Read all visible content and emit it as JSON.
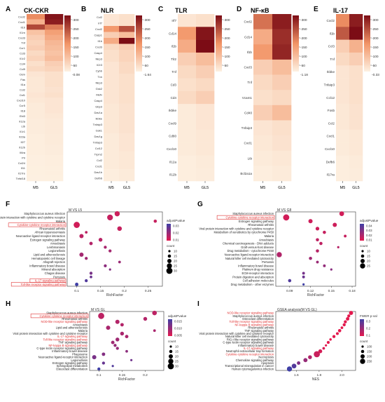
{
  "figure": {
    "heatmap_legend_ticks": [
      "300",
      "250",
      "200",
      "150",
      "100",
      "50"
    ],
    "colors": {
      "heat_low": "#fdf1e2",
      "heat_mid": "#f29466",
      "heat_high": "#7c0c15",
      "dot_low_p": "#e3194e",
      "dot_high_p": "#3f3fa6",
      "highlight_box": "#e03030",
      "highlight_text": "#e03030"
    }
  },
  "chart_data": [
    {
      "type": "heatmap",
      "panel": "A",
      "title": "CK-CKR",
      "min_label": "-0.08",
      "columns": [
        "M5",
        "GL5"
      ],
      "rows": [
        "Cxcl2",
        "Cxcl1",
        "Il1b",
        "Il1rn",
        "Cxcl3",
        "Tnf",
        "Ccr1",
        "Ccl3",
        "Il1r2",
        "Ccl4",
        "Ccl9",
        "Osm",
        "Fas",
        "Il1a",
        "Ccl2",
        "Csf1",
        "Cxcl10",
        "Ccr5",
        "Il18",
        "Ebi3",
        "Il12a",
        "Ltb",
        "Il1r1",
        "Il23a",
        "Il27",
        "Il12b",
        "Il6ra",
        "Prl",
        "Ccl24",
        "Il11",
        "Il17re",
        "Tnfsf18"
      ],
      "values": [
        [
          170,
          310
        ],
        [
          110,
          300
        ],
        [
          250,
          190
        ],
        [
          80,
          140
        ],
        [
          60,
          120
        ],
        [
          50,
          100
        ],
        [
          60,
          90
        ],
        [
          40,
          80
        ],
        [
          50,
          90
        ],
        [
          30,
          60
        ],
        [
          40,
          50
        ],
        [
          20,
          30
        ],
        [
          15,
          30
        ],
        [
          15,
          30
        ],
        [
          15,
          25
        ],
        [
          20,
          30
        ],
        [
          15,
          20
        ],
        [
          10,
          20
        ],
        [
          10,
          20
        ],
        [
          10,
          15
        ],
        [
          8,
          12
        ],
        [
          8,
          12
        ],
        [
          8,
          12
        ],
        [
          5,
          10
        ],
        [
          5,
          10
        ],
        [
          5,
          8
        ],
        [
          5,
          8
        ],
        [
          3,
          5
        ],
        [
          3,
          5
        ],
        [
          2,
          4
        ],
        [
          2,
          4
        ],
        [
          1,
          2
        ]
      ],
      "range": [
        0,
        320
      ]
    },
    {
      "type": "heatmap",
      "panel": "B",
      "title": "NLR",
      "min_label": "-1.64",
      "columns": [
        "M5",
        "GL5"
      ],
      "rows": [
        "Ccl2",
        "Irf7",
        "Cxcl2",
        "Casp1",
        "Il1b",
        "Cxcl3",
        "Casp4",
        "Nlrp3",
        "Il2r3",
        "Cybb",
        "Txn",
        "Nlrp3",
        "Gsk2",
        "Mefv",
        "Casp4",
        "Gbp3",
        "Dav1a",
        "Ikbke",
        "Tnfaip3",
        "Gsk1",
        "Dav1g",
        "Tnfaip3",
        "Ccl12",
        "Trpm2",
        "Ccl2",
        "Cxcl1",
        "Dav1b",
        "Defb6"
      ],
      "values": [
        [
          20,
          30
        ],
        [
          20,
          30
        ],
        [
          150,
          240
        ],
        [
          60,
          90
        ],
        [
          120,
          320
        ],
        [
          40,
          60
        ],
        [
          30,
          50
        ],
        [
          30,
          50
        ],
        [
          20,
          40
        ],
        [
          20,
          40
        ],
        [
          20,
          30
        ],
        [
          20,
          30
        ],
        [
          20,
          30
        ],
        [
          20,
          30
        ],
        [
          20,
          30
        ],
        [
          15,
          25
        ],
        [
          15,
          25
        ],
        [
          15,
          25
        ],
        [
          15,
          25
        ],
        [
          15,
          25
        ],
        [
          10,
          20
        ],
        [
          10,
          20
        ],
        [
          10,
          20
        ],
        [
          10,
          15
        ],
        [
          10,
          15
        ],
        [
          10,
          15
        ],
        [
          5,
          10
        ],
        [
          5,
          10
        ]
      ],
      "range": [
        0,
        320
      ]
    },
    {
      "type": "heatmap",
      "panel": "C",
      "title": "TLR",
      "min_label": "",
      "columns": [
        "M5",
        "GL5"
      ],
      "rows": [
        "Irf7",
        "Cd14",
        "Il1b",
        "Tlr2",
        "Tnf",
        "Cd3",
        "Cd4",
        "Ikbke",
        "Cxcl9",
        "Cd80",
        "Cxcl10",
        "Il12a",
        "Il12b"
      ],
      "values": [
        [
          20,
          30
        ],
        [
          150,
          310
        ],
        [
          120,
          330
        ],
        [
          60,
          90
        ],
        [
          40,
          60
        ],
        [
          30,
          40
        ],
        [
          40,
          60
        ],
        [
          10,
          20
        ],
        [
          10,
          20
        ],
        [
          10,
          15
        ],
        [
          10,
          15
        ],
        [
          5,
          10
        ],
        [
          5,
          8
        ]
      ],
      "range": [
        0,
        320
      ]
    },
    {
      "type": "heatmap",
      "panel": "D",
      "title": "NF-κB",
      "min_label": "-1.18",
      "columns": [
        "M5",
        "GL5"
      ],
      "rows": [
        "Cxcl2",
        "Cd14",
        "Il1b",
        "Cxcl3",
        "Tnf",
        "Vcam1",
        "Cd40",
        "Tnfaip3",
        "Cxcl1",
        "Ltb",
        "Bcl2a1a"
      ],
      "values": [
        [
          200,
          300
        ],
        [
          120,
          280
        ],
        [
          150,
          290
        ],
        [
          60,
          90
        ],
        [
          40,
          60
        ],
        [
          30,
          40
        ],
        [
          60,
          90
        ],
        [
          20,
          30
        ],
        [
          15,
          25
        ],
        [
          10,
          15
        ],
        [
          5,
          10
        ]
      ],
      "range": [
        0,
        320
      ]
    },
    {
      "type": "heatmap",
      "panel": "E",
      "title": "IL-17",
      "min_label": "-0.33",
      "columns": [
        "M5",
        "GL5"
      ],
      "rows": [
        "Cxcl2",
        "Il1b",
        "Ccl3",
        "Tnf",
        "Ikbke",
        "Tnfaip3",
        "Ccl12",
        "Fosb",
        "Ccl2",
        "Cxcl1",
        "Cxcl10",
        "Defb6",
        "Il17ra"
      ],
      "values": [
        [
          170,
          300
        ],
        [
          230,
          320
        ],
        [
          60,
          110
        ],
        [
          40,
          60
        ],
        [
          20,
          30
        ],
        [
          20,
          30
        ],
        [
          20,
          30
        ],
        [
          15,
          25
        ],
        [
          15,
          25
        ],
        [
          10,
          15
        ],
        [
          10,
          15
        ],
        [
          5,
          10
        ],
        [
          5,
          8
        ]
      ],
      "range": [
        0,
        320
      ]
    },
    {
      "type": "scatter",
      "panel": "F",
      "title": "M VS L5",
      "xlabel": "RichFactor",
      "xticks": [
        0.1,
        0.15,
        0.2,
        0.25
      ],
      "xlim": [
        0.08,
        0.28
      ],
      "legend_color_title": "adjustPvalue",
      "legend_color_ticks": [
        "0.03",
        "0.02",
        "0.01"
      ],
      "legend_size_title": "count",
      "legend_size_ticks": [
        10,
        15,
        20,
        25,
        30
      ],
      "terms": [
        "Staphylococcus aureus infection",
        "Viral protein interaction with cytokine and cytokine receptor",
        "Malaria",
        "Cytokine-cytokine receptor interaction",
        "Rheumatoid arthritis",
        "African trypanosomiasis",
        "Neuroactive ligand-receptor interaction",
        "Estrogen signaling pathway",
        "Amoebiasis",
        "Leishmaniasis",
        "Legionellosis",
        "Lipid and atherosclerosis",
        "Hematopoietic cell lineage",
        "Allograft rejection",
        "Inflammatory bowel disease",
        "Mineral absorption",
        "Chagas disease",
        "Pertussis",
        "IL-17 signaling pathway",
        "Toll-like receptor signaling pathway"
      ],
      "highlighted": [
        3,
        18,
        19
      ],
      "x": [
        0.185,
        0.17,
        0.265,
        0.1,
        0.19,
        0.12,
        0.11,
        0.15,
        0.13,
        0.16,
        0.17,
        0.11,
        0.12,
        0.19,
        0.16,
        0.17,
        0.13,
        0.13,
        0.12,
        0.1
      ],
      "count": [
        25,
        28,
        15,
        30,
        22,
        12,
        20,
        18,
        16,
        14,
        14,
        20,
        14,
        12,
        14,
        10,
        14,
        12,
        14,
        16
      ],
      "p": [
        0.005,
        0.006,
        0.006,
        0.004,
        0.006,
        0.008,
        0.008,
        0.009,
        0.01,
        0.012,
        0.013,
        0.013,
        0.014,
        0.015,
        0.018,
        0.02,
        0.022,
        0.025,
        0.03,
        0.034
      ]
    },
    {
      "type": "scatter",
      "panel": "G",
      "title": "M VS G8",
      "xlabel": "RichFactor",
      "xticks": [
        0.09,
        0.12,
        0.15,
        0.18
      ],
      "xlim": [
        0.07,
        0.185
      ],
      "legend_color_title": "adjustPvalue",
      "legend_color_ticks": [
        "0.04",
        "0.03",
        "0.02",
        "0.01"
      ],
      "legend_size_title": "count",
      "legend_size_ticks": [
        10,
        15,
        20,
        25
      ],
      "terms": [
        "Staphylococcus aureus infection",
        "Cytokine-cytokine receptor interaction",
        "Estrogen signaling pathway",
        "Rheumatoid arthritis",
        "Viral protein interaction with cytokine and cytokine receptor",
        "Metabolism of xenobiotics by cytochrome P450",
        "Malaria",
        "Amoebiasis",
        "Chemical carcinogenesis - DNA adducts",
        "Graft-versus-host disease",
        "Drug metabolism - cytochrome P450",
        "Neuroactive ligand-receptor interaction",
        "Natural killer cell mediated cytotoxicity",
        "Pertussis",
        "Inflammatory bowel disease",
        "Platinum drug resistance",
        "ECM-receptor interaction",
        "Protein digestion and absorption",
        "Cell adhesion molecules",
        "Drug metabolism - other enzymes"
      ],
      "highlighted": [
        1
      ],
      "x": [
        0.165,
        0.085,
        0.12,
        0.155,
        0.13,
        0.14,
        0.17,
        0.13,
        0.135,
        0.16,
        0.13,
        0.075,
        0.12,
        0.13,
        0.14,
        0.15,
        0.11,
        0.11,
        0.09,
        0.11
      ],
      "count": [
        20,
        26,
        18,
        18,
        16,
        14,
        12,
        14,
        14,
        10,
        14,
        22,
        14,
        12,
        12,
        10,
        12,
        12,
        14,
        10
      ],
      "p": [
        0.005,
        0.005,
        0.006,
        0.006,
        0.006,
        0.008,
        0.008,
        0.01,
        0.01,
        0.012,
        0.012,
        0.014,
        0.018,
        0.02,
        0.022,
        0.025,
        0.03,
        0.033,
        0.04,
        0.045
      ]
    },
    {
      "type": "scatter",
      "panel": "H",
      "title": "M VS GL",
      "xlabel": "RichFactor",
      "xticks": [
        0.1,
        0.15,
        0.2
      ],
      "xlim": [
        0.08,
        0.24
      ],
      "legend_color_title": "adjustPvalue",
      "legend_color_ticks": [
        "0.015",
        "0.010",
        "0.005"
      ],
      "legend_size_title": "count",
      "legend_size_ticks": [
        10,
        15,
        20,
        25,
        30
      ],
      "terms": [
        "Staphylococcus aureus infection",
        "Cytokine-cytokine receptor interaction",
        "Rheumatoid arthritis",
        "NOD-like receptor signaling pathway",
        "Amoebiasis",
        "Lipid and atherosclerosis",
        "Malaria",
        "Viral protein interaction with cytokine and cytokine receptor",
        "IL-17 signaling pathway",
        "Toll-like receptor signaling pathway",
        "TNF signaling pathway",
        "NF-kappa B signaling pathway",
        "C-type lectin receptor signaling pathway",
        "Inflammatory bowel disease",
        "Phagosome",
        "Neuroactive ligand-receptor interaction",
        "Legionellosis",
        "Estrogen signaling pathway",
        "Sphingolipid metabolism",
        "Osteoclast differentiation"
      ],
      "highlighted": [
        1,
        3,
        8,
        9,
        11
      ],
      "x": [
        0.22,
        0.105,
        0.2,
        0.14,
        0.15,
        0.12,
        0.22,
        0.15,
        0.16,
        0.14,
        0.13,
        0.135,
        0.14,
        0.16,
        0.11,
        0.09,
        0.17,
        0.11,
        0.13,
        0.1
      ],
      "count": [
        22,
        30,
        18,
        20,
        16,
        20,
        12,
        18,
        16,
        18,
        16,
        14,
        14,
        12,
        16,
        20,
        10,
        14,
        10,
        14
      ],
      "p": [
        0.004,
        0.004,
        0.005,
        0.005,
        0.005,
        0.006,
        0.006,
        0.006,
        0.006,
        0.007,
        0.007,
        0.008,
        0.008,
        0.009,
        0.01,
        0.011,
        0.012,
        0.013,
        0.015,
        0.017
      ]
    },
    {
      "type": "scatter",
      "panel": "I",
      "title": "GSEA analysis(M VS GL)",
      "xlabel": "NES",
      "xticks": [
        1.6,
        1.8,
        2.0
      ],
      "xlim": [
        1.42,
        2.12
      ],
      "legend_color_title": "FWER p-val",
      "legend_color_ticks": [
        "0.3",
        "0.2",
        "0.1"
      ],
      "legend_size_title": "count",
      "legend_size_ticks": [
        100,
        150,
        200,
        250
      ],
      "terms": [
        "NOD-like receptor signaling pathway",
        "Staphylococcus aureus infection",
        "Osteoclast differentiation",
        "Toll-like receptor signaling pathway",
        "NF-kappa B signaling pathway",
        "Rheumatoid arthritis",
        "TNF signaling pathway",
        "Viral protein interaction with cytokine and cytokine receptor",
        "Natural killer cell mediated cytotoxicity",
        "RIG-I-like receptor signaling pathway",
        "C-type lectin receptor signaling pathway",
        "Inflammatory bowel disease",
        "IL-17 signaling pathway",
        "Neutrophil extracellular trap formation",
        "Cytokine-cytokine receptor interaction",
        "Necroptosis",
        "Chemokine signaling pathway",
        "Apoptosis",
        "Transcriptional misregulation in cancer",
        "Human cytomegalovirus infection"
      ],
      "highlighted": [
        0,
        3,
        4,
        12,
        14
      ],
      "x": [
        2.08,
        2.06,
        2.05,
        2.03,
        2.02,
        2.0,
        1.98,
        1.96,
        1.93,
        1.9,
        1.88,
        1.86,
        1.84,
        1.81,
        1.78,
        1.72,
        1.68,
        1.62,
        1.58,
        1.54
      ],
      "count": [
        150,
        100,
        120,
        100,
        100,
        80,
        110,
        90,
        100,
        70,
        90,
        60,
        80,
        140,
        250,
        140,
        150,
        120,
        180,
        200
      ],
      "p": [
        0.0,
        0.0,
        0.0,
        0.0,
        0.0,
        0.0,
        0.0,
        0.0,
        0.0,
        0.0,
        0.0,
        0.0,
        0.02,
        0.03,
        0.05,
        0.1,
        0.15,
        0.2,
        0.28,
        0.32
      ]
    }
  ]
}
